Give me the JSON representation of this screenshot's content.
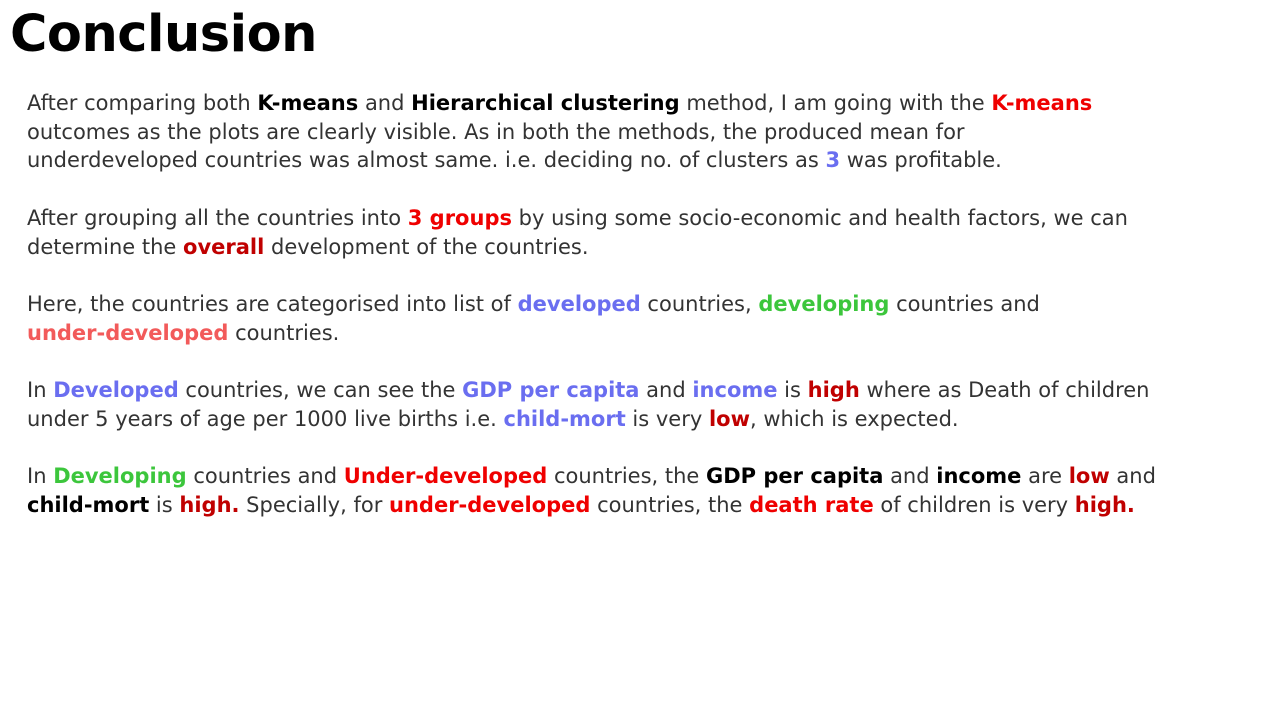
{
  "slide": {
    "title": "Conclusion",
    "paragraphs": [
      {
        "lines": [
          [
            {
              "text": "After comparing both ",
              "style": "plain"
            },
            {
              "text": "K-means",
              "style": "black"
            },
            {
              "text": " and ",
              "style": "plain"
            },
            {
              "text": "Hierarchical clustering",
              "style": "black"
            },
            {
              "text": " method, I am going with the ",
              "style": "plain"
            },
            {
              "text": "K-means",
              "style": "red"
            }
          ],
          [
            {
              "text": "outcomes as the plots are clearly visible. As in both the methods, the produced mean for",
              "style": "plain"
            }
          ],
          [
            {
              "text": "underdeveloped countries was almost same. i.e. deciding no. of clusters as ",
              "style": "plain"
            },
            {
              "text": "3",
              "style": "blue"
            },
            {
              "text": " was profitable.",
              "style": "plain"
            }
          ]
        ]
      },
      {
        "lines": [
          [
            {
              "text": "After grouping all the countries into ",
              "style": "plain"
            },
            {
              "text": "3 groups",
              "style": "red"
            },
            {
              "text": " by using some socio-economic and health factors, we can",
              "style": "plain"
            }
          ],
          [
            {
              "text": "determine the ",
              "style": "plain"
            },
            {
              "text": "overall",
              "style": "dred"
            },
            {
              "text": " development of the countries.",
              "style": "plain"
            }
          ]
        ]
      },
      {
        "lines": [
          [
            {
              "text": "Here, the countries are categorised into list of ",
              "style": "plain"
            },
            {
              "text": "developed",
              "style": "blue"
            },
            {
              "text": " countries, ",
              "style": "plain"
            },
            {
              "text": "developing",
              "style": "green"
            },
            {
              "text": " countries and",
              "style": "plain"
            }
          ],
          [
            {
              "text": "under-developed",
              "style": "salmon"
            },
            {
              "text": " countries.",
              "style": "plain"
            }
          ]
        ]
      },
      {
        "lines": [
          [
            {
              "text": "In ",
              "style": "plain"
            },
            {
              "text": "Developed",
              "style": "blue"
            },
            {
              "text": " countries, we can see the ",
              "style": "plain"
            },
            {
              "text": "GDP per capita",
              "style": "blue"
            },
            {
              "text": " and ",
              "style": "plain"
            },
            {
              "text": "income",
              "style": "blue"
            },
            {
              "text": " is ",
              "style": "plain"
            },
            {
              "text": "high",
              "style": "dred"
            },
            {
              "text": " where as Death of children",
              "style": "plain"
            }
          ],
          [
            {
              "text": "under 5 years of age per 1000 live births i.e. ",
              "style": "plain"
            },
            {
              "text": "child-mort",
              "style": "blue"
            },
            {
              "text": " is very ",
              "style": "plain"
            },
            {
              "text": "low",
              "style": "dred"
            },
            {
              "text": ", which is expected.",
              "style": "plain"
            }
          ]
        ]
      },
      {
        "lines": [
          [
            {
              "text": "In ",
              "style": "plain"
            },
            {
              "text": "Developing",
              "style": "green"
            },
            {
              "text": " countries and ",
              "style": "plain"
            },
            {
              "text": "Under-developed",
              "style": "red"
            },
            {
              "text": " countries, the ",
              "style": "plain"
            },
            {
              "text": "GDP per capita",
              "style": "black"
            },
            {
              "text": " and ",
              "style": "plain"
            },
            {
              "text": "income",
              "style": "black"
            },
            {
              "text": " are ",
              "style": "plain"
            },
            {
              "text": "low",
              "style": "dred"
            },
            {
              "text": " and",
              "style": "plain"
            }
          ],
          [
            {
              "text": "child-mort",
              "style": "black"
            },
            {
              "text": " is ",
              "style": "plain"
            },
            {
              "text": "high.",
              "style": "dred"
            },
            {
              "text": " Specially, for ",
              "style": "plain"
            },
            {
              "text": "under-developed",
              "style": "red"
            },
            {
              "text": " countries, the ",
              "style": "plain"
            },
            {
              "text": "death rate",
              "style": "red"
            },
            {
              "text": " of children is very ",
              "style": "plain"
            },
            {
              "text": "high.",
              "style": "dred"
            }
          ]
        ]
      }
    ]
  },
  "colors": {
    "plain": "#333333",
    "black": "#000000",
    "red": "#ef0000",
    "dred": "#c00000",
    "blue": "#6a6ef0",
    "green": "#3cc63c",
    "salmon": "#f25a5a"
  }
}
